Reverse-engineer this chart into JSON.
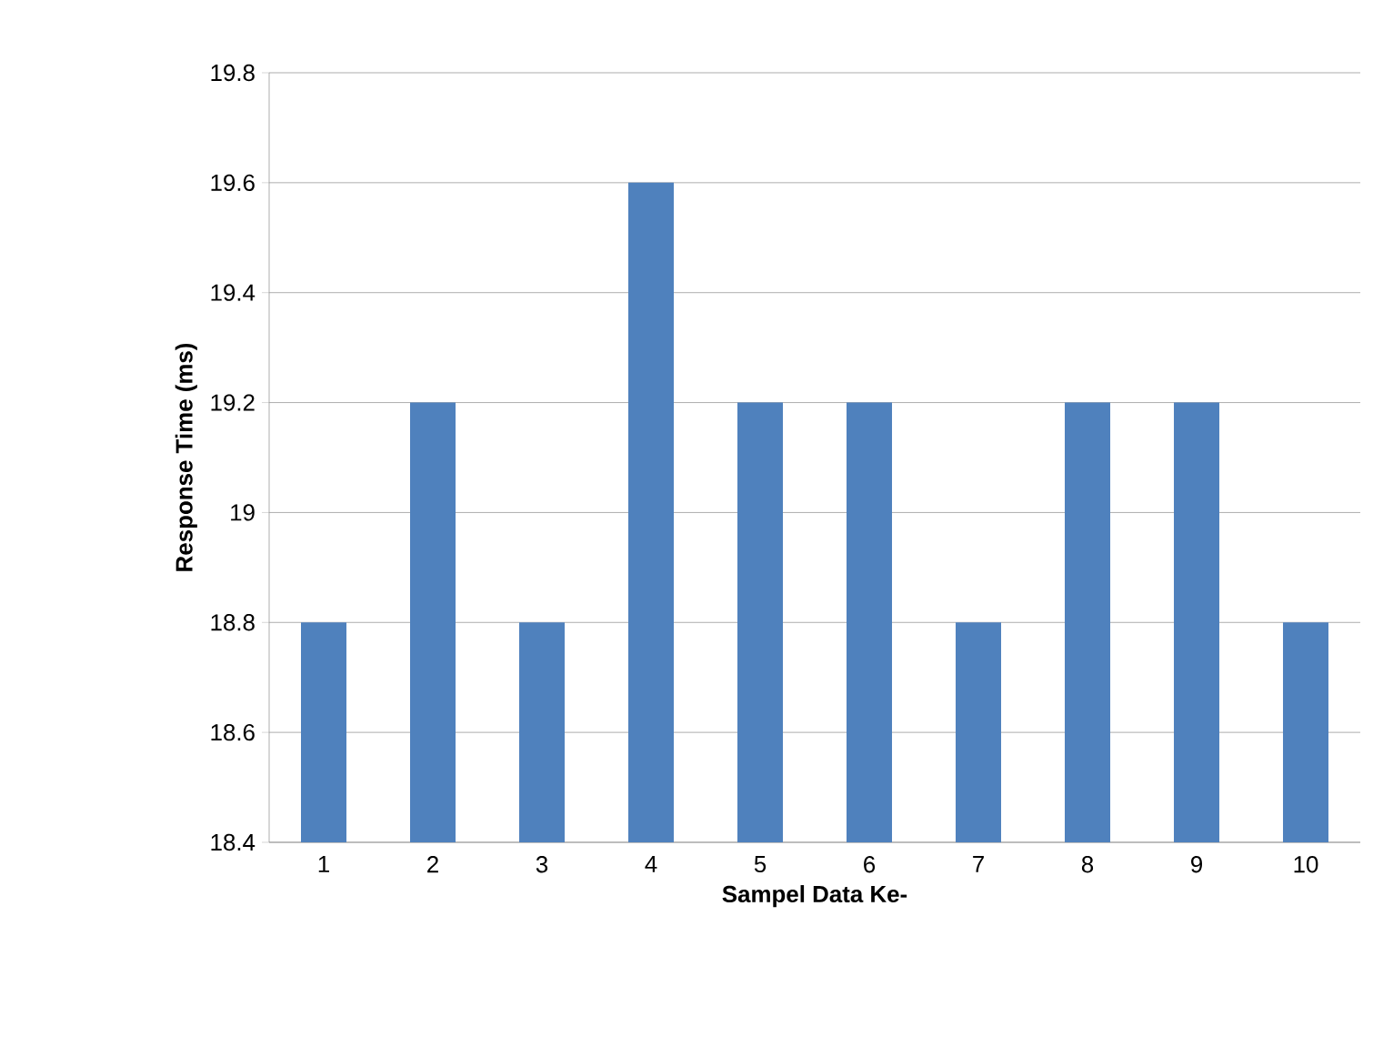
{
  "chart_data": {
    "type": "bar",
    "xlabel": "Sampel Data Ke-",
    "ylabel": "Response Time (ms)",
    "categories": [
      "1",
      "2",
      "3",
      "4",
      "5",
      "6",
      "7",
      "8",
      "9",
      "10"
    ],
    "values": [
      18.8,
      19.2,
      18.8,
      19.6,
      19.2,
      19.2,
      18.8,
      19.2,
      19.2,
      18.8
    ],
    "color": "#4f81bd",
    "ylim": [
      18.4,
      19.8
    ],
    "yticks": [
      18.4,
      18.6,
      18.8,
      19,
      19.2,
      19.4,
      19.6,
      19.8
    ],
    "grid": "y"
  }
}
